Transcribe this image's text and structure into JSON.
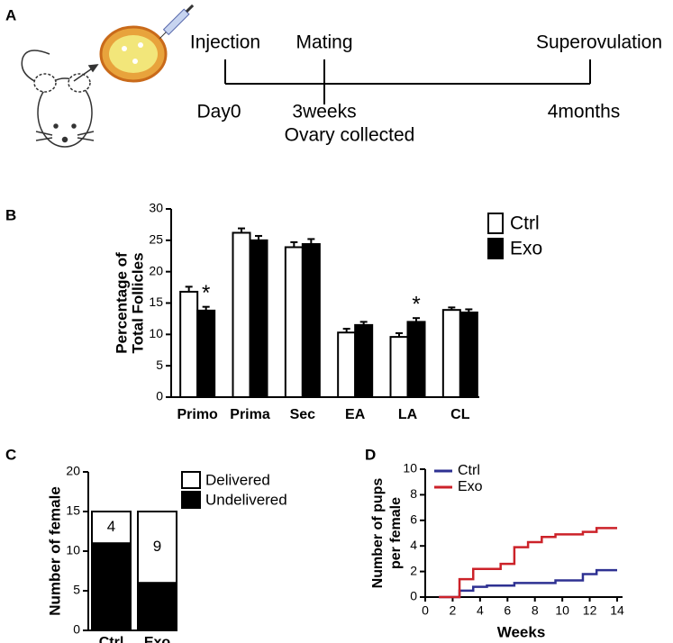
{
  "panel_labels": [
    "A",
    "B",
    "C",
    "D"
  ],
  "timeline": {
    "top": [
      "Injection",
      "Mating",
      "Superovulation"
    ],
    "bottom": [
      "Day0",
      "3weeks",
      "Ovary collected",
      "4months"
    ]
  },
  "chart_data": [
    {
      "type": "bar",
      "ylabel": [
        "Percentage of",
        "Total Follicles"
      ],
      "categories": [
        "Primo",
        "Prima",
        "Sec",
        "EA",
        "LA",
        "CL"
      ],
      "series": [
        {
          "name": "Ctrl",
          "color": "#ffffff",
          "values": [
            16.8,
            26.2,
            23.9,
            10.3,
            9.6,
            13.9
          ],
          "errors": [
            0.8,
            0.7,
            0.8,
            0.6,
            0.6,
            0.4
          ]
        },
        {
          "name": "Exo",
          "color": "#000000",
          "values": [
            13.8,
            25.0,
            24.4,
            11.5,
            12.0,
            13.5
          ],
          "errors": [
            0.6,
            0.7,
            0.8,
            0.5,
            0.6,
            0.5
          ]
        }
      ],
      "annotations": [
        "*",
        "*"
      ],
      "ylim": [
        0,
        30
      ],
      "yticks": [
        0,
        5,
        10,
        15,
        20,
        25,
        30
      ],
      "legend": "top-right"
    },
    {
      "type": "stacked-bar",
      "ylabel": "Number of female",
      "categories": [
        "Ctrl",
        "Exo"
      ],
      "series": [
        {
          "name": "Undelivered",
          "color": "#000000",
          "values": [
            11,
            6
          ]
        },
        {
          "name": "Delivered",
          "color": "#ffffff",
          "values": [
            4,
            9
          ]
        }
      ],
      "ylim": [
        0,
        20
      ],
      "yticks": [
        0,
        5,
        10,
        15,
        20
      ],
      "legend": "right"
    },
    {
      "type": "step",
      "ylabel": [
        "Number of pups",
        "per female"
      ],
      "xlabel": "Weeks",
      "x": [
        1,
        2.5,
        3.5,
        4.5,
        5.5,
        6.5,
        7.5,
        8.5,
        9.5,
        11.5,
        12.5,
        14
      ],
      "series": [
        {
          "name": "Ctrl",
          "color": "#2e3192",
          "values": [
            0,
            0.5,
            0.8,
            0.9,
            0.9,
            1.1,
            1.1,
            1.1,
            1.3,
            1.8,
            2.1,
            2.1
          ]
        },
        {
          "name": "Exo",
          "color": "#cc2229",
          "values": [
            0,
            1.4,
            2.2,
            2.2,
            2.6,
            3.9,
            4.3,
            4.7,
            4.9,
            5.1,
            5.4,
            5.4
          ]
        }
      ],
      "xlim": [
        0,
        14
      ],
      "xticks": [
        0,
        2,
        4,
        6,
        8,
        10,
        12,
        14
      ],
      "ylim": [
        0,
        10
      ],
      "yticks": [
        0,
        2,
        4,
        6,
        8,
        10
      ],
      "legend": "top-left"
    }
  ]
}
